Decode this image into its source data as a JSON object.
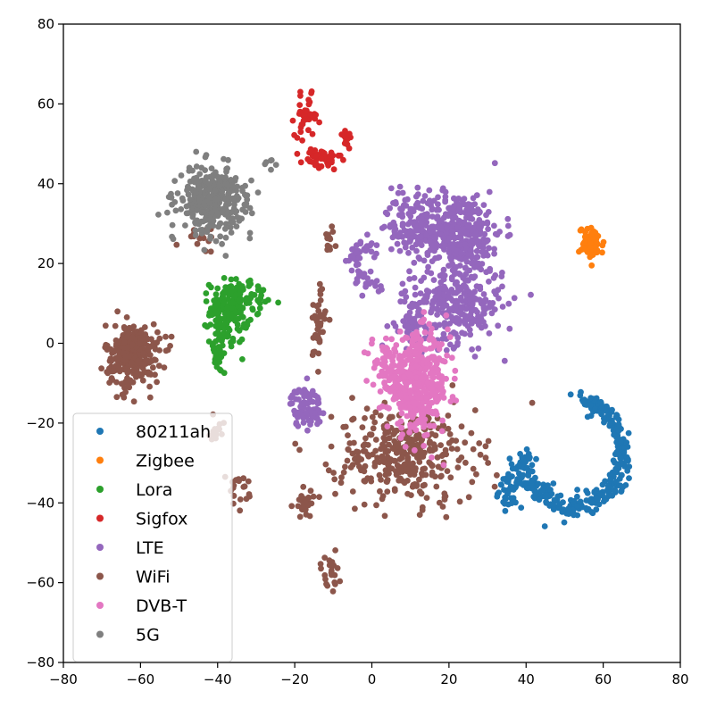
{
  "chart_data": {
    "type": "scatter",
    "title": "",
    "xlabel": "",
    "ylabel": "",
    "xlim": [
      -80,
      80
    ],
    "ylim": [
      -80,
      80
    ],
    "xticks": [
      -80,
      -60,
      -40,
      -20,
      0,
      20,
      40,
      60,
      80
    ],
    "yticks": [
      -80,
      -60,
      -40,
      -20,
      0,
      20,
      40,
      60,
      80
    ],
    "grid": false,
    "legend_position": "lower-left",
    "series": [
      {
        "name": "80211ah",
        "color": "#1f77b4",
        "clusters": [
          {
            "shape": "arc",
            "cx": 50,
            "cy": -28,
            "r": 15,
            "start_deg": 75,
            "end_deg": -10,
            "spread": 1.0,
            "n": 140
          },
          {
            "shape": "arc",
            "cx": 52,
            "cy": -28,
            "r": 13,
            "start_deg": -10,
            "end_deg": -180,
            "spread": 1.4,
            "n": 200
          },
          {
            "shape": "blob",
            "cx": 36,
            "cy": -37,
            "sx": 1.5,
            "sy": 2,
            "n": 40
          }
        ]
      },
      {
        "name": "Zigbee",
        "color": "#ff7f0e",
        "clusters": [
          {
            "shape": "blob",
            "cx": 57,
            "cy": 25,
            "sx": 1.6,
            "sy": 2,
            "n": 70
          }
        ]
      },
      {
        "name": "Lora",
        "color": "#2ca02c",
        "clusters": [
          {
            "shape": "blob",
            "cx": -37,
            "cy": 8,
            "sx": 2.5,
            "sy": 4,
            "n": 160
          },
          {
            "shape": "blob",
            "cx": -40,
            "cy": -2,
            "sx": 1.2,
            "sy": 3,
            "n": 30
          },
          {
            "shape": "blob",
            "cx": -30,
            "cy": 12,
            "sx": 3,
            "sy": 2,
            "n": 25
          }
        ]
      },
      {
        "name": "Sigfox",
        "color": "#d62728",
        "clusters": [
          {
            "shape": "blob",
            "cx": -17,
            "cy": 57,
            "sx": 1.5,
            "sy": 2.5,
            "n": 40
          },
          {
            "shape": "blob",
            "cx": -13,
            "cy": 46,
            "sx": 2.5,
            "sy": 1.5,
            "n": 45
          },
          {
            "shape": "blob",
            "cx": -7,
            "cy": 52,
            "sx": 1.2,
            "sy": 1.2,
            "n": 15
          }
        ]
      },
      {
        "name": "LTE",
        "color": "#9467bd",
        "clusters": [
          {
            "shape": "blob",
            "cx": 22,
            "cy": 28,
            "sx": 6,
            "sy": 5,
            "n": 350
          },
          {
            "shape": "blob",
            "cx": 22,
            "cy": 10,
            "sx": 6,
            "sy": 5,
            "n": 300
          },
          {
            "shape": "blob",
            "cx": 13,
            "cy": 28,
            "sx": 4,
            "sy": 3,
            "n": 80
          },
          {
            "shape": "arc",
            "cx": 2,
            "cy": 20,
            "r": 6,
            "start_deg": 90,
            "end_deg": 270,
            "spread": 1.2,
            "n": 60
          },
          {
            "shape": "blob",
            "cx": 8,
            "cy": 34,
            "sx": 3,
            "sy": 3,
            "n": 40
          },
          {
            "shape": "blob",
            "cx": 10,
            "cy": 5,
            "sx": 2,
            "sy": 3,
            "n": 40
          },
          {
            "shape": "blob",
            "cx": -17,
            "cy": -16,
            "sx": 2,
            "sy": 2.5,
            "n": 90
          }
        ]
      },
      {
        "name": "WiFi",
        "color": "#8c564b",
        "clusters": [
          {
            "shape": "blob",
            "cx": -62,
            "cy": -3,
            "sx": 3.5,
            "sy": 4,
            "n": 300
          },
          {
            "shape": "blob",
            "cx": 9,
            "cy": -28,
            "sx": 9,
            "sy": 6,
            "n": 350
          },
          {
            "shape": "blob",
            "cx": -14,
            "cy": 5,
            "sx": 1,
            "sy": 5,
            "n": 40
          },
          {
            "shape": "blob",
            "cx": -11,
            "cy": 25,
            "sx": 1,
            "sy": 2,
            "n": 12
          },
          {
            "shape": "blob",
            "cx": -17,
            "cy": -40,
            "sx": 1.5,
            "sy": 2,
            "n": 25
          },
          {
            "shape": "blob",
            "cx": -11,
            "cy": -57,
            "sx": 1.5,
            "sy": 2.5,
            "n": 25
          },
          {
            "shape": "blob",
            "cx": -35,
            "cy": -37,
            "sx": 1.5,
            "sy": 2,
            "n": 20
          },
          {
            "shape": "blob",
            "cx": -40,
            "cy": -21,
            "sx": 1.5,
            "sy": 1.5,
            "n": 15
          },
          {
            "shape": "blob",
            "cx": -44,
            "cy": 26,
            "sx": 3,
            "sy": 1.5,
            "n": 15
          }
        ]
      },
      {
        "name": "DVB-T",
        "color": "#e377c2",
        "clusters": [
          {
            "shape": "blob",
            "cx": 12,
            "cy": -10,
            "sx": 4,
            "sy": 6,
            "n": 450
          },
          {
            "shape": "blob",
            "cx": 4,
            "cy": -6,
            "sx": 2,
            "sy": 3,
            "n": 50
          }
        ]
      },
      {
        "name": "5G",
        "color": "#7f7f7f",
        "clusters": [
          {
            "shape": "blob",
            "cx": -42,
            "cy": 36,
            "sx": 4,
            "sy": 4,
            "n": 320
          },
          {
            "shape": "blob",
            "cx": -33,
            "cy": 36,
            "sx": 2,
            "sy": 3,
            "n": 20
          },
          {
            "shape": "blob",
            "cx": -27,
            "cy": 46,
            "sx": 1.5,
            "sy": 1.5,
            "n": 6
          }
        ]
      }
    ]
  }
}
